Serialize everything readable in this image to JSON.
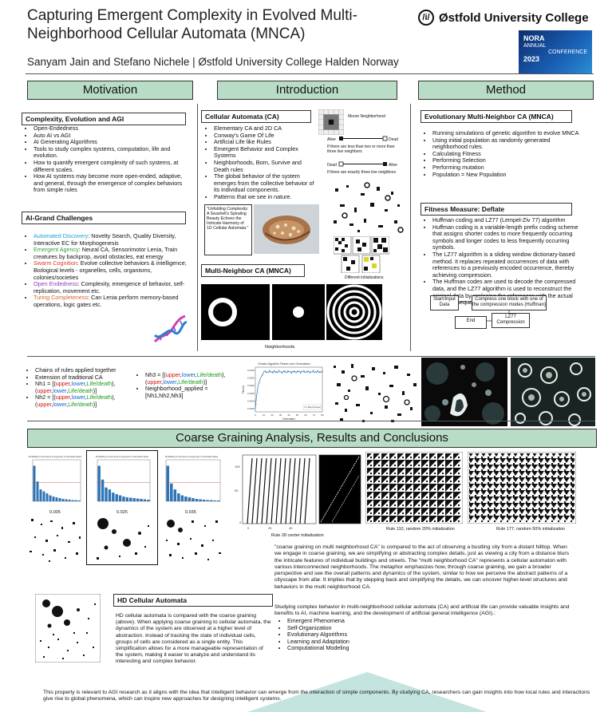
{
  "title_line1": "Capturing Emergent Complexity in Evolved Multi-",
  "title_line2": "Neighborhood Cellular Automata (MNCA)",
  "authors": "Sanyam Jain and Stefano Nichele | Østfold University College Halden Norway",
  "logo_text": "Østfold University College",
  "logo_mark": "/i/",
  "nora": {
    "l1": "NORA",
    "l2": "ANNUAL",
    "l3": "CONFERENCE",
    "l4": "2023"
  },
  "sections": {
    "motivation": "Motivation",
    "introduction": "Introduction",
    "method": "Method",
    "coarse": "Coarse Graining Analysis, Results and Conclusions"
  },
  "motivation": {
    "box1": "Complexity, Evolution and AGI",
    "list1": [
      "Open-Endedness",
      "Auto AI vs AGI",
      "AI Generating Algorithms",
      "Tools to study complex systems, computation, life and evolution.",
      "How to quantify emergent complexity of such systems, at different scales.",
      "How AI systems may become more open-ended, adaptive, and general, through the emergence of complex behaviors from simple rules"
    ],
    "box2": "AI-Grand Challenges",
    "grand": [
      {
        "k": "Automated Discovery",
        "v": ": Novelty Search, Quality Diversity, Interactive EC for Morphogenesis"
      },
      {
        "k": "Emergent Agency",
        "v": ": Neural CA, Sensorimotor Lenia, Train creatures by backprop, avoid obstacles, eat energy"
      },
      {
        "k": "Swarm Cognition",
        "v": ": Evolve collective behaviors & intelligence; Biological levels - organelles, cells, organisms, colonies/societies"
      },
      {
        "k": "Open Endedness",
        "v": ": Complexity, emergence of behavior, self-replication, movement etc."
      },
      {
        "k": "Turing Completeness",
        "v": ": Can Lenia perform memory-based operations, logic gates etc."
      }
    ]
  },
  "intro": {
    "box1": "Cellular Automata (CA)",
    "list1": [
      "Elementary CA and 2D CA",
      "Conway's Game Of Life",
      "Artificial Life like Rules",
      "Emergent Behavior and Complex Systems",
      "Neighborhoods, Born, Survive and Death rules",
      "The global behavior of the system emerges from the collective behavior of its individual components.",
      "Patterns that we see in nature."
    ],
    "moore": "Moore Neighborhood",
    "alive": "Alive",
    "dead": "Dead",
    "rule1": "If there are less than two or more than three live neighbors",
    "rule2": "If there are exactly three live neighbors",
    "caption": "\"Unfolding Complexity: A Seashell's Spiraling Beauty Echoes the Intricate Harmony of 1D Cellular Automata.\"",
    "box2": "Multi-Neighbor CA (MNCA)",
    "diff_init": "Different initializations",
    "neighborhoods": "Neighborhoods"
  },
  "method": {
    "box1": "Evolutionary Multi-Neighbor CA (MNCA)",
    "list1": [
      "Running simulations of genetic algorithm to evolve MNCA",
      "Using initial population as randomly generated neighborhood rules.",
      "Calculating Fitness",
      "Performing Selection",
      "Performing mutation",
      "Population = New Population"
    ],
    "box2": "Fitness Measure: Deflate",
    "list2": [
      "Huffman coding and LZ77 (Lempel-Ziv 77) algorithm",
      "Huffman coding is a variable-length prefix coding scheme that assigns shorter codes to more frequently occurring symbols and longer codes to less frequently occurring symbols.",
      "The LZ77 algorithm is a sliding window dictionary-based method. It replaces repeated occurrences of data with references to a previously encoded occurrence, thereby achieving compression.",
      "The Huffman codes are used to decode the compressed data, and the LZ77 algorithm is used to reconstruct the original data by replacing the references with the actual repeated sequences."
    ],
    "flow_start": "Start/Input Data",
    "flow_compress": "Compress one block with one of the compression modes (Huffman)",
    "flow_end": "End",
    "flow_lz": "LZ77 Compression"
  },
  "rules": {
    "list_a": [
      "Chains of rules applied together",
      "Extension of traditional CA"
    ],
    "nh1_label": "Nh1 = [(",
    "nh2_label": "Nh2 = [(",
    "nh3_label": "Nh3 = [(",
    "t_upper": "upper",
    "t_lower": "lower",
    "t_life": "Life/death",
    "sep": ",",
    "close1": ")",
    "open2": "(",
    "close_end": ")]",
    "applied": "Neighborhood_applied = [Nh1,Nh2,Nh3]"
  },
  "fitness_chart": {
    "title": "Genetic Algorithm Fitness over Generations",
    "xlabel": "Generation",
    "ylabel": "Fitness",
    "legend": "Best Fitness",
    "xticks": [
      "0",
      "10",
      "20",
      "30",
      "40",
      "50",
      "60",
      "70",
      "80"
    ],
    "yticks": [
      "0.6000",
      "0.5500",
      "0.5000",
      "0.4500",
      "0.4000",
      "0.3500"
    ]
  },
  "chart_data": [
    {
      "type": "line",
      "title": "Genetic Algorithm Fitness over Generations",
      "xlabel": "Generation",
      "ylabel": "Fitness",
      "xlim": [
        0,
        80
      ],
      "ylim": [
        0.33,
        0.62
      ],
      "series": [
        {
          "name": "Best Fitness",
          "x": [
            0,
            2,
            4,
            6,
            8,
            10,
            12,
            14,
            16,
            20,
            25,
            30,
            35,
            40,
            45,
            50,
            55,
            60,
            65,
            70,
            75,
            80
          ],
          "values": [
            0.35,
            0.38,
            0.45,
            0.52,
            0.57,
            0.59,
            0.59,
            0.59,
            0.59,
            0.59,
            0.59,
            0.59,
            0.59,
            0.59,
            0.59,
            0.59,
            0.59,
            0.59,
            0.59,
            0.59,
            0.59,
            0.59
          ]
        }
      ]
    },
    {
      "type": "bar",
      "title": "Probability of occurrence of segments vs threshold values",
      "values": [
        0.9,
        0.5,
        0.3,
        0.25,
        0.2,
        0.15,
        0.12,
        0.1,
        0.08,
        0.06,
        0.05,
        0.04,
        0.03,
        0.03,
        0.02
      ]
    },
    {
      "type": "bar",
      "title": "Probability of occurrence of segments vs threshold values",
      "values": [
        0.9,
        0.55,
        0.35,
        0.3,
        0.22,
        0.18,
        0.15,
        0.12,
        0.1,
        0.09,
        0.08,
        0.07,
        0.06,
        0.05,
        0.04
      ]
    },
    {
      "type": "bar",
      "title": "Probability of occurrence of segments vs threshold values",
      "values": [
        0.9,
        0.45,
        0.3,
        0.2,
        0.15,
        0.12,
        0.1,
        0.08,
        0.06,
        0.05,
        0.04,
        0.03,
        0.03,
        0.02,
        0.02
      ]
    }
  ],
  "results": {
    "bar_labels": [
      "0.005",
      "0.025",
      "0.035"
    ],
    "rule28": "Rule 28 center initialization",
    "rule110": "Rule 110, random 20% initialization",
    "rule177": "Rule 177, random 50% initialization",
    "para1": "\"coarse graining on multi neighborhood CA\" is compared to the act of observing a bustling city from a distant hilltop. When we engage in coarse graining, we are simplifying or abstracting complex details, just as viewing a city from a distance blurs the intricate features of individual buildings and streets. The \"multi neighborhood CA\" represents a cellular automaton with various interconnected neighborhoods. The metaphor emphasizes how, through coarse graining, we gain a broader perspective and see the overall patterns and dynamics of the system, similar to how we perceive the abstract patterns of a cityscape from afar. It implies that by stepping back and simplifying the details, we can uncover higher-level structures and behaviors in the multi neighborhood CA.",
    "para2": "Studying complex behavior in multi-neighborhood cellular automata (CA) and artificial life can provide valuable insights and benefits to AI, machine learning, and the development of artificial general intelligence (AGI).:",
    "list": [
      "Emergent Phenomena",
      "Self-Organization",
      "Evolutionary Algorithms",
      "Learning and Adaptation",
      "Computational Modeling"
    ],
    "hd_box": "HD Cellular Automata",
    "hd_text": "HD cellular automata is compared with the coarse graining (above). When applying coarse graining to cellular automata, the dynamics of the system are observed at a higher level of abstraction. Instead of tracking the state of individual cells, groups of cells are considered as a single entity. This simplification allows for a more manageable representation of the system, making it easier to analyze and understand its interesting and complex behavior.",
    "footer": "This property is relevant to AGI research as it aligns with the idea that intelligent behavior can emerge from the interaction of simple components. By studying CA, researchers can gain insights into how local rules and interactions give rise to global phenomena, which can inspire new approaches for designing intelligent systems."
  }
}
